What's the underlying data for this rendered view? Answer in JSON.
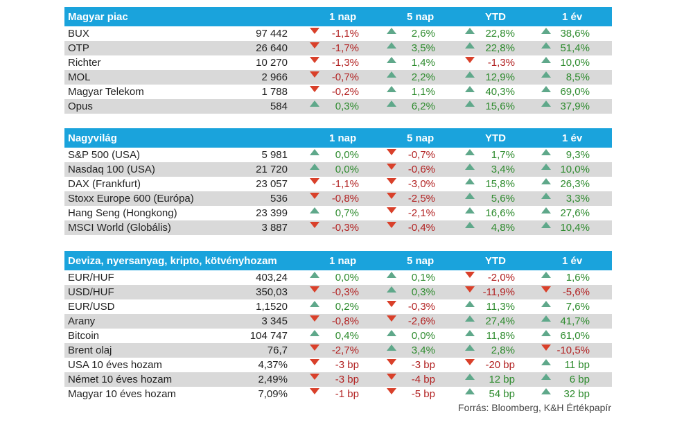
{
  "columns": [
    "1 nap",
    "5 nap",
    "YTD",
    "1 év"
  ],
  "sections": [
    {
      "title": "Magyar piac",
      "rows": [
        {
          "name": "BUX",
          "value": "97 442",
          "d1": "-1,1%",
          "d5": "2,6%",
          "ytd": "22,8%",
          "y1": "38,6%"
        },
        {
          "name": "OTP",
          "value": "26 640",
          "d1": "-1,7%",
          "d5": "3,5%",
          "ytd": "22,8%",
          "y1": "51,4%"
        },
        {
          "name": "Richter",
          "value": "10 270",
          "d1": "-1,3%",
          "d5": "1,4%",
          "ytd": "-1,3%",
          "y1": "10,0%"
        },
        {
          "name": "MOL",
          "value": "2 966",
          "d1": "-0,7%",
          "d5": "2,2%",
          "ytd": "12,9%",
          "y1": "8,5%"
        },
        {
          "name": "Magyar Telekom",
          "value": "1 788",
          "d1": "-0,2%",
          "d5": "1,1%",
          "ytd": "40,3%",
          "y1": "69,0%"
        },
        {
          "name": "Opus",
          "value": "584",
          "d1": "0,3%",
          "d5": "6,2%",
          "ytd": "15,6%",
          "y1": "37,9%"
        }
      ]
    },
    {
      "title": "Nagyvilág",
      "rows": [
        {
          "name": "S&P 500 (USA)",
          "value": "5 981",
          "d1": "0,0%",
          "d5": "-0,7%",
          "ytd": "1,7%",
          "y1": "9,3%"
        },
        {
          "name": "Nasdaq 100 (USA)",
          "value": "21 720",
          "d1": "0,0%",
          "d5": "-0,6%",
          "ytd": "3,4%",
          "y1": "10,0%"
        },
        {
          "name": "DAX (Frankfurt)",
          "value": "23 057",
          "d1": "-1,1%",
          "d5": "-3,0%",
          "ytd": "15,8%",
          "y1": "26,3%"
        },
        {
          "name": "Stoxx Europe 600 (Európa)",
          "value": "536",
          "d1": "-0,8%",
          "d5": "-2,5%",
          "ytd": "5,6%",
          "y1": "3,3%"
        },
        {
          "name": "Hang Seng (Hongkong)",
          "value": "23 399",
          "d1": "0,7%",
          "d5": "-2,1%",
          "ytd": "16,6%",
          "y1": "27,6%"
        },
        {
          "name": "MSCI World (Globális)",
          "value": "3 887",
          "d1": "-0,3%",
          "d5": "-0,4%",
          "ytd": "4,8%",
          "y1": "10,4%"
        }
      ]
    },
    {
      "title": "Deviza, nyersanyag, kripto, kötvényhozam",
      "rows": [
        {
          "name": "EUR/HUF",
          "value": "403,24",
          "d1": "0,0%",
          "d5": "0,1%",
          "ytd": "-2,0%",
          "y1": "1,6%"
        },
        {
          "name": "USD/HUF",
          "value": "350,03",
          "d1": "-0,3%",
          "d5": "0,3%",
          "ytd": "-11,9%",
          "y1": "-5,6%"
        },
        {
          "name": "EUR/USD",
          "value": "1,1520",
          "d1": "0,2%",
          "d5": "-0,3%",
          "ytd": "11,3%",
          "y1": "7,6%"
        },
        {
          "name": "Arany",
          "value": "3 345",
          "d1": "-0,8%",
          "d5": "-2,6%",
          "ytd": "27,4%",
          "y1": "41,7%"
        },
        {
          "name": "Bitcoin",
          "value": "104 747",
          "d1": "0,4%",
          "d5": "0,0%",
          "ytd": "11,8%",
          "y1": "61,0%"
        },
        {
          "name": "Brent olaj",
          "value": "76,7",
          "d1": "-2,7%",
          "d5": "3,4%",
          "ytd": "2,8%",
          "y1": "-10,5%"
        },
        {
          "name": "USA 10 éves hozam",
          "value": "4,37%",
          "d1": "-3 bp",
          "d5": "-3 bp",
          "ytd": "-20 bp",
          "y1": "11 bp"
        },
        {
          "name": "Német 10 éves hozam",
          "value": "2,49%",
          "d1": "-3 bp",
          "d5": "-4 bp",
          "ytd": "12 bp",
          "y1": "6 bp"
        },
        {
          "name": "Magyar 10 éves hozam",
          "value": "7,09%",
          "d1": "-1 bp",
          "d5": "-5 bp",
          "ytd": "54 bp",
          "y1": "32 bp"
        }
      ]
    }
  ],
  "source": "Forrás: Bloomberg, K&H Értékpapír",
  "colors": {
    "header_bg": "#1aa3dc",
    "up": "#5fa88a",
    "down": "#d9402a",
    "pos_text": "#2e8b2e",
    "neg_text": "#b22222",
    "alt_row": "#d9d9d9"
  }
}
